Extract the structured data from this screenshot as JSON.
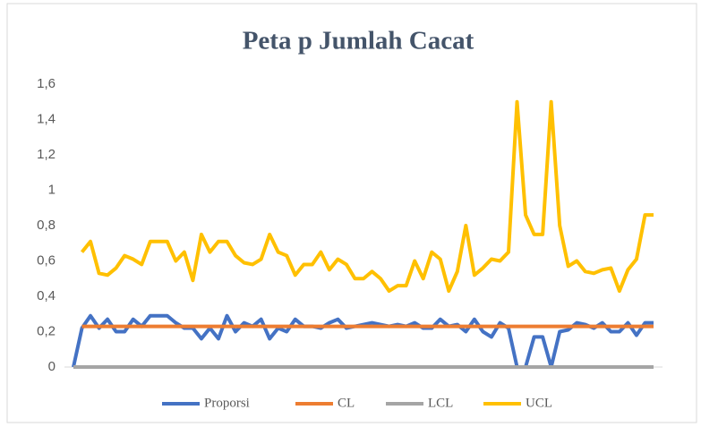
{
  "chart_data": {
    "type": "line",
    "title": "Peta p Jumlah Cacat",
    "categories": [
      null,
      null,
      null,
      null,
      null,
      null,
      null,
      null,
      null,
      null,
      null,
      null,
      null,
      null,
      null,
      null,
      null,
      null,
      null,
      null,
      null,
      null,
      null,
      null,
      null,
      null,
      null,
      null,
      null,
      null,
      null,
      null,
      null,
      null,
      null,
      null,
      null,
      null,
      null,
      null,
      null,
      null,
      null,
      null,
      null,
      null,
      null,
      null,
      null,
      null,
      null,
      null,
      null,
      null,
      null,
      null,
      null,
      null,
      null,
      null,
      null,
      null,
      null,
      null,
      null,
      null,
      null,
      null,
      null
    ],
    "series": [
      {
        "name": "Proporsi",
        "color": "#4472c4",
        "values": [
          0,
          0.22,
          0.29,
          0.22,
          0.27,
          0.2,
          0.2,
          0.27,
          0.23,
          0.29,
          0.29,
          0.29,
          0.25,
          0.22,
          0.22,
          0.16,
          0.22,
          0.16,
          0.29,
          0.2,
          0.25,
          0.23,
          0.27,
          0.16,
          0.22,
          0.2,
          0.27,
          0.23,
          0.23,
          0.22,
          0.25,
          0.27,
          0.22,
          0.23,
          0.24,
          0.25,
          0.24,
          0.23,
          0.24,
          0.23,
          0.25,
          0.22,
          0.22,
          0.27,
          0.23,
          0.24,
          0.2,
          0.27,
          0.2,
          0.17,
          0.25,
          0.22,
          0,
          0,
          0.17,
          0.17,
          0,
          0.2,
          0.21,
          0.25,
          0.24,
          0.22,
          0.25,
          0.2,
          0.2,
          0.25,
          0.18,
          0.25,
          0.25
        ]
      },
      {
        "name": "CL",
        "color": "#ed7d31",
        "values": [
          null,
          0.23,
          0.23,
          0.23,
          0.23,
          0.23,
          0.23,
          0.23,
          0.23,
          0.23,
          0.23,
          0.23,
          0.23,
          0.23,
          0.23,
          0.23,
          0.23,
          0.23,
          0.23,
          0.23,
          0.23,
          0.23,
          0.23,
          0.23,
          0.23,
          0.23,
          0.23,
          0.23,
          0.23,
          0.23,
          0.23,
          0.23,
          0.23,
          0.23,
          0.23,
          0.23,
          0.23,
          0.23,
          0.23,
          0.23,
          0.23,
          0.23,
          0.23,
          0.23,
          0.23,
          0.23,
          0.23,
          0.23,
          0.23,
          0.23,
          0.23,
          0.23,
          0.23,
          0.23,
          0.23,
          0.23,
          0.23,
          0.23,
          0.23,
          0.23,
          0.23,
          0.23,
          0.23,
          0.23,
          0.23,
          0.23,
          0.23,
          0.23,
          0.23
        ]
      },
      {
        "name": "LCL",
        "color": "#a5a5a5",
        "values": [
          0,
          0,
          0,
          0,
          0,
          0,
          0,
          0,
          0,
          0,
          0,
          0,
          0,
          0,
          0,
          0,
          0,
          0,
          0,
          0,
          0,
          0,
          0,
          0,
          0,
          0,
          0,
          0,
          0,
          0,
          0,
          0,
          0,
          0,
          0,
          0,
          0,
          0,
          0,
          0,
          0,
          0,
          0,
          0,
          0,
          0,
          0,
          0,
          0,
          0,
          0,
          0,
          0,
          0,
          0,
          0,
          0,
          0,
          0,
          0,
          0,
          0,
          0,
          0,
          0,
          0,
          0,
          0,
          0
        ]
      },
      {
        "name": "UCL",
        "color": "#ffc000",
        "values": [
          null,
          0.65,
          0.71,
          0.53,
          0.52,
          0.56,
          0.63,
          0.61,
          0.58,
          0.71,
          0.71,
          0.71,
          0.6,
          0.65,
          0.49,
          0.75,
          0.65,
          0.71,
          0.71,
          0.63,
          0.59,
          0.58,
          0.61,
          0.75,
          0.65,
          0.63,
          0.52,
          0.58,
          0.58,
          0.65,
          0.55,
          0.61,
          0.58,
          0.5,
          0.5,
          0.54,
          0.5,
          0.43,
          0.46,
          0.46,
          0.6,
          0.5,
          0.65,
          0.61,
          0.43,
          0.54,
          0.8,
          0.52,
          0.56,
          0.61,
          0.6,
          0.65,
          1.5,
          0.86,
          0.75,
          0.75,
          1.5,
          0.8,
          0.57,
          0.6,
          0.54,
          0.53,
          0.55,
          0.56,
          0.43,
          0.55,
          0.61,
          0.86,
          0.86
        ]
      }
    ],
    "ylim": [
      0,
      1.6
    ],
    "yticks": [
      0,
      {
        "value": 0.2,
        "label": "0,2"
      },
      {
        "value": 0.4,
        "label": "0,4"
      },
      {
        "value": 0.6,
        "label": "0,6"
      },
      {
        "value": 0.8,
        "label": "0,8"
      },
      1,
      {
        "value": 1.2,
        "label": "1,2"
      },
      {
        "value": 1.4,
        "label": "1,4"
      },
      {
        "value": 1.6,
        "label": "1,6"
      }
    ],
    "grid": false,
    "legend": "bottom"
  }
}
